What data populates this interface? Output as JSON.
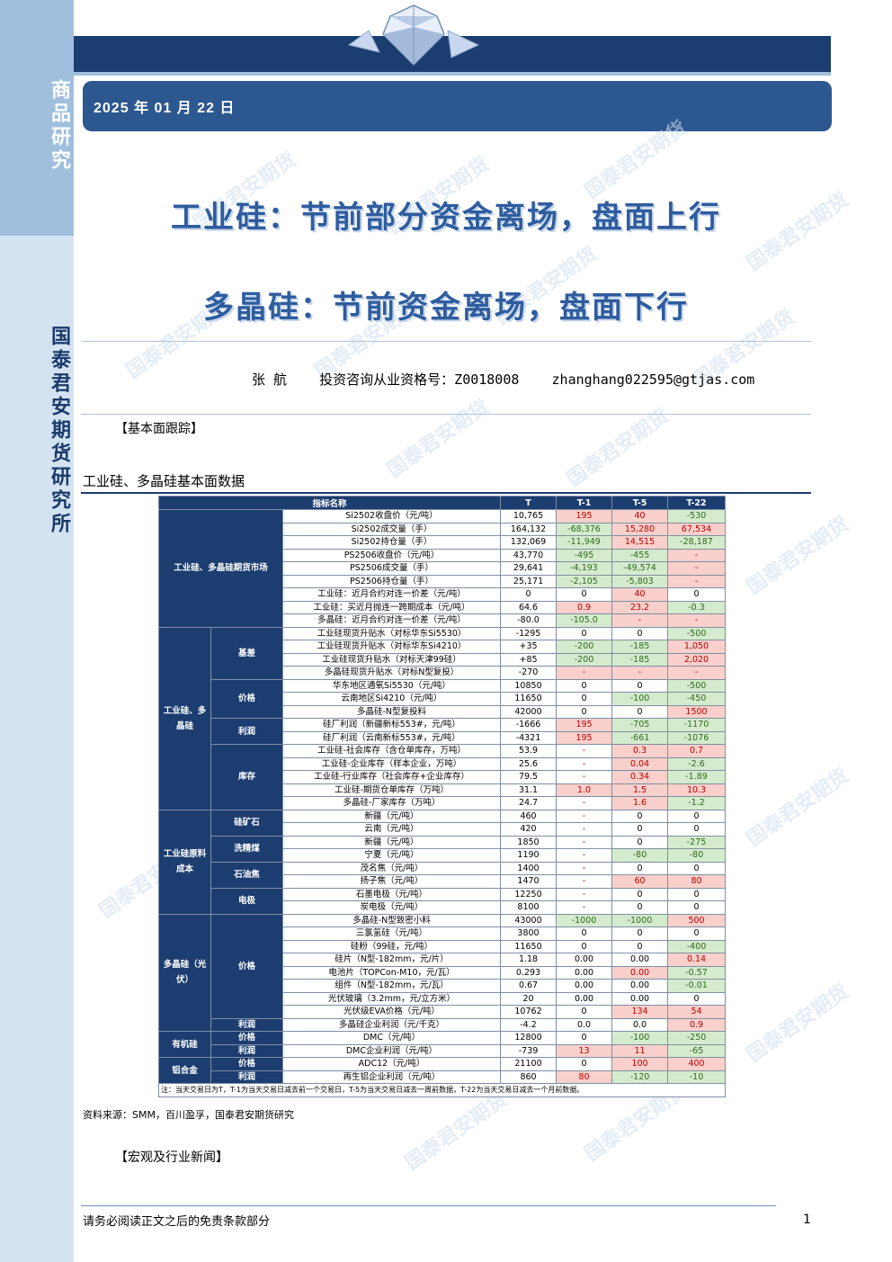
{
  "sidebar": {
    "top_label": "商品研究",
    "bottom_label": "国泰君安期货研究所"
  },
  "header": {
    "date": "2025 年 01 月 22 日"
  },
  "watermark": "国泰君安期货",
  "titles": {
    "line1": "工业硅：节前部分资金离场，盘面上行",
    "line2": "多晶硅：节前资金离场，盘面下行"
  },
  "author": {
    "name": "张 航",
    "license": "投资咨询从业资格号：Z0018008",
    "email": "zhanghang022595@gtjas.com"
  },
  "sections": {
    "fundamentals": "【基本面跟踪】",
    "news": "【宏观及行业新闻】"
  },
  "table_caption": "工业硅、多晶硅基本面数据",
  "table": {
    "headers": [
      "指标名称",
      "T",
      "T-1",
      "T-5",
      "T-22"
    ],
    "groups": {
      "futures": "工业硅、多晶硅期货市场",
      "spot": "工业硅、多晶硅",
      "cost": "工业硅原料成本",
      "pv": "多晶硅（光伏）",
      "organic": "有机硅",
      "alloy": "铝合金"
    },
    "subgroups": {
      "basis": "基差",
      "price": "价格",
      "profit": "利润",
      "inventory": "库存",
      "ore": "硅矿石",
      "coal": "洗精煤",
      "coke": "石油焦",
      "electrode": "电极",
      "pv_price": "价格",
      "pv_profit": "利润",
      "org_price": "价格",
      "org_profit": "利润",
      "al_price": "价格",
      "al_profit": "利润"
    },
    "rows": [
      [
        "Si2502收盘价（元/吨）",
        "10,765",
        "195",
        "40",
        "-530"
      ],
      [
        "Si2502成交量（手）",
        "164,132",
        "-68,376",
        "15,280",
        "67,534"
      ],
      [
        "Si2502持仓量（手）",
        "132,069",
        "-11,949",
        "14,515",
        "-28,187"
      ],
      [
        "PS2506收盘价（元/吨）",
        "43,770",
        "-495",
        "-455",
        "-"
      ],
      [
        "PS2506成交量（手）",
        "29,641",
        "-4,193",
        "-49,574",
        "-"
      ],
      [
        "PS2506持仓量（手）",
        "25,171",
        "-2,105",
        "-5,803",
        "-"
      ],
      [
        "工业硅：近月合约对连一价差（元/吨）",
        "0",
        "0",
        "40",
        "0"
      ],
      [
        "工业硅：买近月抛连一跨期成本（元/吨）",
        "64.6",
        "0.9",
        "23.2",
        "-0.3"
      ],
      [
        "多晶硅：近月合约对连一价差（元/吨）",
        "-80.0",
        "-105.0",
        "-",
        "-"
      ],
      [
        "工业硅现货升贴水（对标华东Si5530）",
        "-1295",
        "0",
        "0",
        "-500"
      ],
      [
        "工业硅现货升贴水（对标华东Si4210）",
        "+35",
        "-200",
        "-185",
        "1,050"
      ],
      [
        "工业硅现货升贴水（对标天津99硅）",
        "+85",
        "-200",
        "-185",
        "2,020"
      ],
      [
        "多晶硅现货升贴水（对标N型复投）",
        "-270",
        "-",
        "-",
        "-"
      ],
      [
        "华东地区通氧Si5530（元/吨）",
        "10850",
        "0",
        "0",
        "-500"
      ],
      [
        "云南地区Si4210（元/吨）",
        "11650",
        "0",
        "-100",
        "-450"
      ],
      [
        "多晶硅-N型复投料",
        "42000",
        "0",
        "0",
        "1500"
      ],
      [
        "硅厂利润（新疆新标553#，元/吨）",
        "-1666",
        "195",
        "-705",
        "-1170"
      ],
      [
        "硅厂利润（云南新标553#，元/吨）",
        "-4321",
        "195",
        "-661",
        "-1076"
      ],
      [
        "工业硅-社会库存（含仓单库存，万吨）",
        "53.9",
        "-",
        "0.3",
        "0.7"
      ],
      [
        "工业硅-企业库存（样本企业，万吨）",
        "25.6",
        "-",
        "0.04",
        "-2.6"
      ],
      [
        "工业硅-行业库存（社会库存+企业库存）",
        "79.5",
        "-",
        "0.34",
        "-1.89"
      ],
      [
        "工业硅-期货仓单库存（万吨）",
        "31.1",
        "1.0",
        "1.5",
        "10.3"
      ],
      [
        "多晶硅-厂家库存（万吨）",
        "24.7",
        "-",
        "1.6",
        "-1.2"
      ],
      [
        "新疆（元/吨）",
        "460",
        "-",
        "0",
        "0"
      ],
      [
        "云南（元/吨）",
        "420",
        "-",
        "0",
        "0"
      ],
      [
        "新疆（元/吨）",
        "1850",
        "-",
        "0",
        "-275"
      ],
      [
        "宁夏（元/吨）",
        "1190",
        "-",
        "-80",
        "-80"
      ],
      [
        "茂名焦（元/吨）",
        "1400",
        "-",
        "0",
        "0"
      ],
      [
        "扬子焦（元/吨）",
        "1470",
        "-",
        "60",
        "80"
      ],
      [
        "石墨电极（元/吨）",
        "12250",
        "-",
        "0",
        "0"
      ],
      [
        "炭电极（元/吨）",
        "8100",
        "-",
        "0",
        "0"
      ],
      [
        "多晶硅-N型致密小料",
        "43000",
        "-1000",
        "-1000",
        "500"
      ],
      [
        "三氯氢硅（元/吨）",
        "3800",
        "0",
        "0",
        "0"
      ],
      [
        "硅粉（99硅，元/吨）",
        "11650",
        "0",
        "0",
        "-400"
      ],
      [
        "硅片（N型-182mm，元/片）",
        "1.18",
        "0.00",
        "0.00",
        "0.14"
      ],
      [
        "电池片（TOPCon-M10，元/瓦）",
        "0.293",
        "0.00",
        "0.00",
        "-0.57"
      ],
      [
        "组件（N型-182mm，元/瓦）",
        "0.67",
        "0.00",
        "0.00",
        "-0.01"
      ],
      [
        "光伏玻璃（3.2mm，元/立方米）",
        "20",
        "0.00",
        "0.00",
        "0"
      ],
      [
        "光伏级EVA价格（元/吨）",
        "10762",
        "0",
        "134",
        "54"
      ],
      [
        "多晶硅企业利润（元/千克）",
        "-4.2",
        "0.0",
        "0.0",
        "0.9"
      ],
      [
        "DMC（元/吨）",
        "12800",
        "0",
        "-100",
        "-250"
      ],
      [
        "DMC企业利润（元/吨）",
        "-739",
        "13",
        "11",
        "-65"
      ],
      [
        "ADC12（元/吨）",
        "21100",
        "0",
        "100",
        "400"
      ],
      [
        "再生铝企业利润（元/吨）",
        "860",
        "80",
        "-120",
        "-10"
      ]
    ],
    "note": "注：当天交易日为T，T-1为当天交易日减去前一个交易日，T-5为当天交易日减去一周前数据，T-22为当天交易日减去一个月前数据。"
  },
  "source": "资料来源：SMM，百川盈孚，国泰君安期货研究",
  "footer": {
    "disclaimer": "请务必阅读正文之后的免责条款部分",
    "page": "1"
  }
}
